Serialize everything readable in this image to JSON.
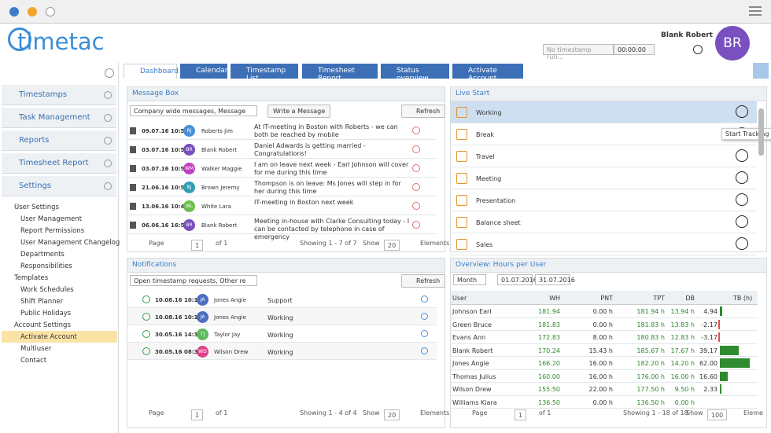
{
  "header": {
    "logo": "timetac",
    "user_name": "Blank Robert",
    "avatar": "BR",
    "timestamp_placeholder": "No timestamp run...",
    "timer": "00:00:00"
  },
  "tabs": [
    "Dashboard",
    "Calendar",
    "Timestamp List",
    "Timesheet Report",
    "Status overview",
    "Activate Account"
  ],
  "sidebar": {
    "items": [
      "Timestamps",
      "Task Management",
      "Reports",
      "Timesheet Report",
      "Settings"
    ],
    "tree": [
      {
        "label": "User Settings",
        "children": [
          "User Management",
          "Report Permissions",
          "User Management Changelog",
          "Departments",
          "Responsibilities"
        ]
      },
      {
        "label": "Templates",
        "children": [
          "Work Schedules",
          "Shift Planner",
          "Public Holidays"
        ]
      },
      {
        "label": "Account Settings",
        "children": [
          "Activate Account",
          "Multiuser",
          "Contact"
        ]
      }
    ]
  },
  "message_box": {
    "title": "Message Box",
    "filter": "Company wide messages, Message",
    "write": "Write a Message",
    "refresh": "Refresh",
    "rows": [
      [
        "09.07.16 10:55",
        "RJ",
        "Roberts Jim",
        "At IT-meeting in Boston with Roberts - we can both be reached by mobile"
      ],
      [
        "03.07.16 10:57",
        "BR",
        "Blank Robert",
        "Daniel Adwards is getting married - Congratulations!"
      ],
      [
        "03.07.16 10:51",
        "WM",
        "Walker Maggie",
        "I am on leave next week - Earl Johnson will cover for me during this time"
      ],
      [
        "21.06.16 10:51",
        "BJ",
        "Brown Jeremy",
        "Thompson is on leave: Ms Jones will step in for her during this time"
      ],
      [
        "13.06.16 10:43",
        "WL",
        "White Lara",
        "IT-meeting in Boston next week"
      ],
      [
        "06.06.16 16:58",
        "BR",
        "Blank Robert",
        "Meeting in-house with Clarke Consulting today - I can be contacted by telephone in case of emergency"
      ]
    ],
    "pager": {
      "page": "Page",
      "number": "1",
      "of": "of 1",
      "showing": "Showing 1 - 7 of 7",
      "show": "Show",
      "size": "20",
      "elements": "Elements"
    }
  },
  "notifications": {
    "title": "Notifications",
    "filter": "Open timestamp requests, Other re",
    "refresh": "Refresh",
    "rows": [
      [
        "10.08.16 10:10",
        "JA",
        "Jones Angie",
        "Support"
      ],
      [
        "10.08.16 10:10",
        "JA",
        "Jones Angie",
        "Working"
      ],
      [
        "30.05.16 14:32",
        "TJ",
        "Taylor Jay",
        "Working"
      ],
      [
        "30.05.16 08:36",
        "WD",
        "Wilson Drew",
        "Working"
      ]
    ],
    "pager": {
      "page": "Page",
      "number": "1",
      "of": "of 1",
      "showing": "Showing 1 - 4 of 4",
      "show": "Show",
      "size": "20",
      "elements": "Elements"
    }
  },
  "live_start": {
    "title": "Live Start",
    "items": [
      "Working",
      "Break",
      "Travel",
      "Meeting",
      "Presentation",
      "Balance sheet",
      "Sales"
    ],
    "tooltip": "Start Tracking"
  },
  "overview": {
    "title": "Overview: Hours per User",
    "period": "Month",
    "from": "01.07.2016",
    "to": "31.07.2016",
    "columns": [
      "User",
      "WH",
      "PNT",
      "TPT",
      "DB",
      "TB (h)"
    ],
    "rows": [
      [
        "Johnson Earl",
        "181.94",
        "0.00 h",
        "181.94 h",
        "13.94 h",
        "4.94"
      ],
      [
        "Green Bruce",
        "181.83",
        "0.00 h",
        "181.83 h",
        "13.83 h",
        "-2.17"
      ],
      [
        "Evans Ann",
        "172.83",
        "8.00 h",
        "180.83 h",
        "12.83 h",
        "-3.17"
      ],
      [
        "Blank Robert",
        "170.24",
        "15.43 h",
        "185.67 h",
        "17.67 h",
        "39.17"
      ],
      [
        "Jones Angie",
        "166.20",
        "16.00 h",
        "182.20 h",
        "14.20 h",
        "62.00"
      ],
      [
        "Thomas Julius",
        "160.00",
        "16.00 h",
        "176.00 h",
        "16.00 h",
        "16.60"
      ],
      [
        "Wilson Drew",
        "155.50",
        "22.00 h",
        "177.50 h",
        "9.50 h",
        "2.33"
      ],
      [
        "Williams Kiara",
        "136.50",
        "0.00 h",
        "136.50 h",
        "0.00 h",
        ""
      ]
    ],
    "pager": {
      "page": "Page",
      "number": "1",
      "of": "of 1",
      "showing": "Showing 1 - 18 of 18",
      "show": "Show",
      "size": "100",
      "elements": "Eleme"
    }
  }
}
